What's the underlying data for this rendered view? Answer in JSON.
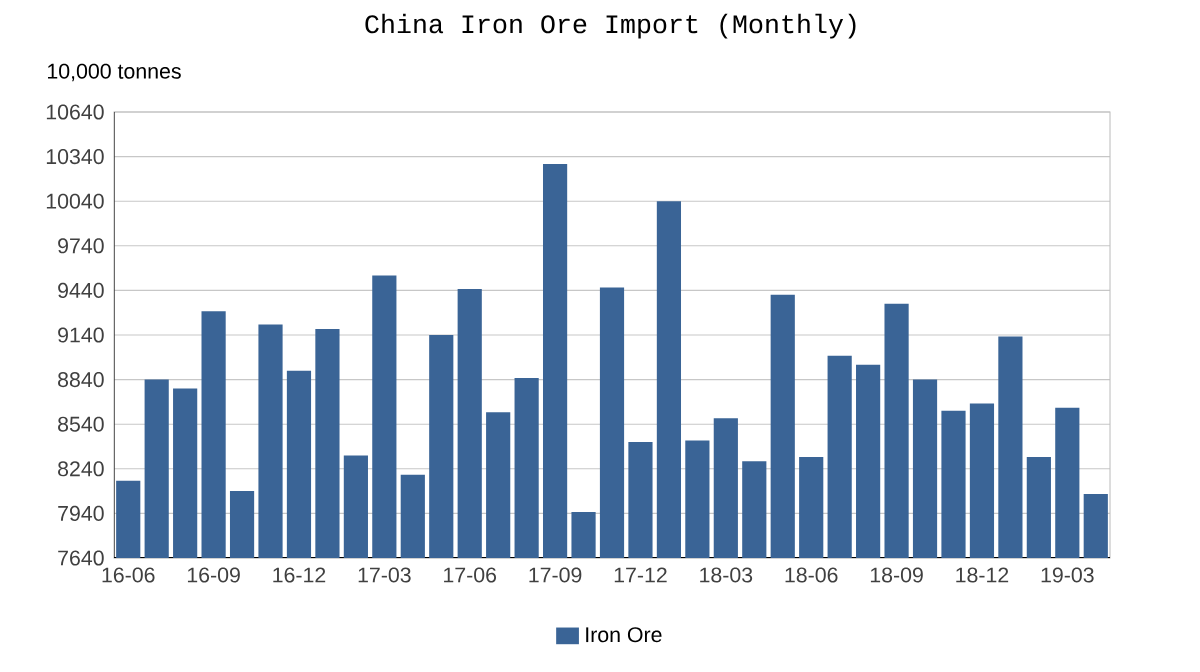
{
  "chart_data": {
    "type": "bar",
    "title": "China Iron Ore Import (Monthly)",
    "ylabel": "10,000 tonnes",
    "categories": [
      "16-06",
      null,
      null,
      "16-09",
      null,
      null,
      "16-12",
      null,
      null,
      "17-03",
      null,
      null,
      "17-06",
      null,
      null,
      "17-09",
      null,
      null,
      "17-12",
      null,
      null,
      "18-03",
      null,
      null,
      "18-06",
      null,
      null,
      "18-09",
      null,
      null,
      "18-12",
      null,
      null,
      "19-03",
      null
    ],
    "series": [
      {
        "name": "Iron Ore",
        "color": "#3a6496",
        "values": [
          8160,
          8840,
          8780,
          9300,
          8090,
          9210,
          8900,
          9180,
          8330,
          9540,
          8200,
          9140,
          9450,
          8620,
          8850,
          10290,
          7950,
          9460,
          8420,
          10040,
          8430,
          8580,
          8290,
          9410,
          8320,
          9000,
          8940,
          9350,
          8840,
          8630,
          8680,
          9130,
          8320,
          8650,
          8070
        ]
      }
    ],
    "ylim": [
      7640,
      10640
    ],
    "yticks": [
      7640,
      7940,
      8240,
      8540,
      8840,
      9140,
      9440,
      9740,
      10040,
      10340,
      10640
    ],
    "grid": "y",
    "legend": "bottom"
  }
}
